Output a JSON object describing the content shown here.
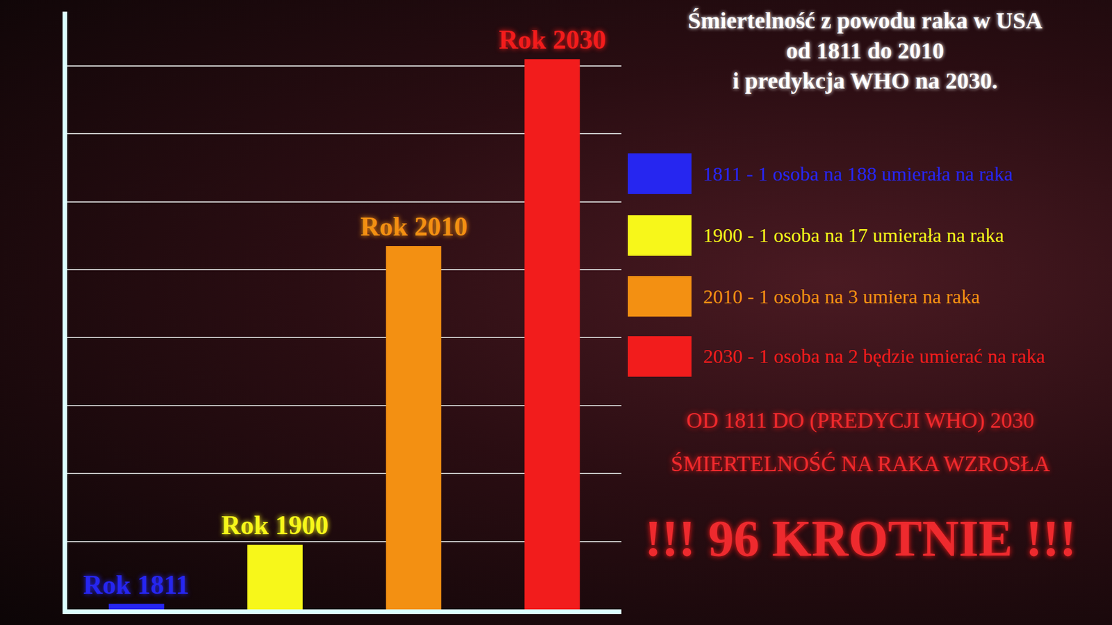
{
  "chart_data": {
    "type": "bar",
    "title": [
      "Śmiertelność z powodu raka w USA",
      "od 1811 do 2010",
      "i predykcja WHO na 2030."
    ],
    "categories": [
      "Rok 1811",
      "Rok 1900",
      "Rok 2010",
      "Rok 2030"
    ],
    "series": [
      {
        "name": "1811 - 1 osoba na 188 umierała na raka",
        "color": "#2626f0",
        "values": [
          0.08,
          null,
          null,
          null
        ]
      },
      {
        "name": "1900 - 1 osoba na 17 umierała na raka",
        "color": "#f7f71a",
        "values": [
          null,
          0.95,
          null,
          null
        ]
      },
      {
        "name": "2010 - 1 osoba na 3 umiera na raka",
        "color": "#f39012",
        "values": [
          null,
          null,
          5.35,
          null
        ]
      },
      {
        "name": "2030 - 1 osoba na 2 będzie umierać na raka",
        "color": "#f21c1c",
        "values": [
          null,
          null,
          null,
          8.1
        ]
      }
    ],
    "ylim": [
      0,
      8.8
    ],
    "yticks": [
      0,
      1,
      2,
      3,
      4,
      5,
      6,
      7,
      8
    ],
    "grid": true,
    "tick_labels": false,
    "legend": "right",
    "annotations": [
      "OD 1811 DO (PREDYCJI WHO) 2030",
      "ŚMIERTELNOŚĆ NA RAKA WZROSŁA",
      "!!! 96 KROTNIE !!!"
    ]
  }
}
